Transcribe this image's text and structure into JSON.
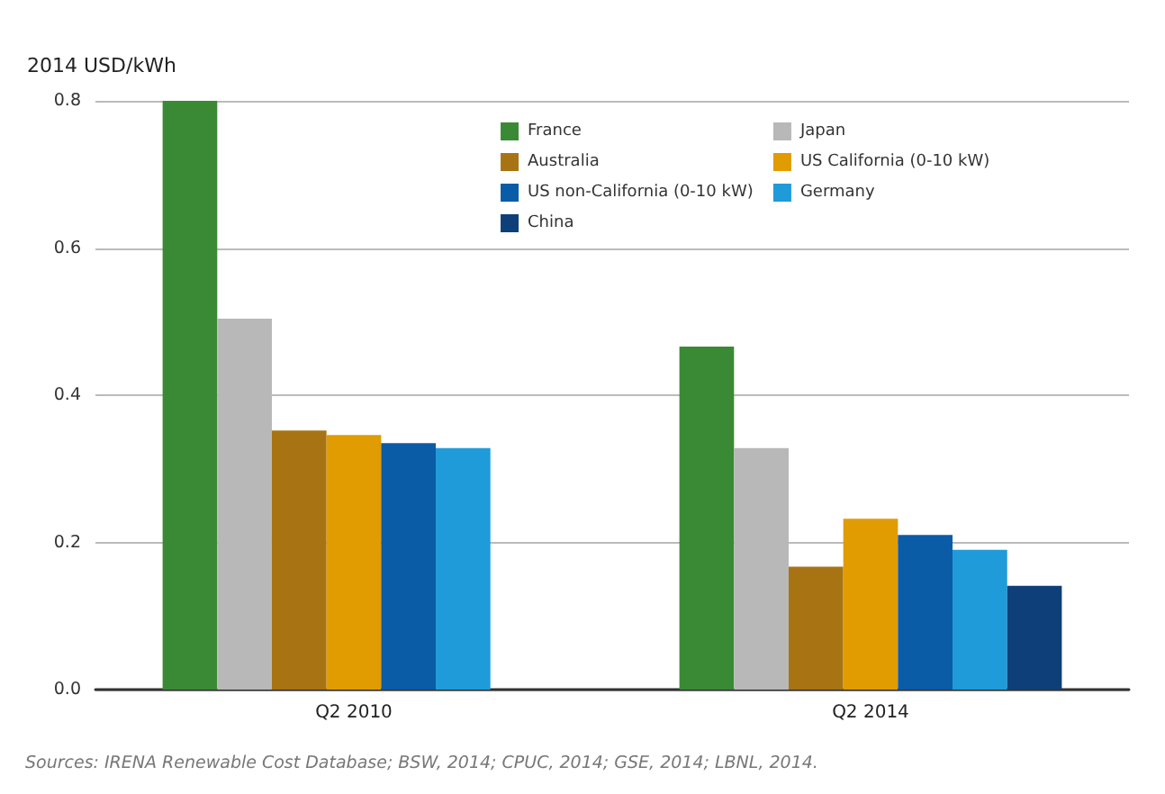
{
  "chart_data": {
    "type": "bar",
    "ylabel": "2014 USD/kWh",
    "categories": [
      "Q2 2010",
      "Q2 2014"
    ],
    "series": [
      {
        "name": "France",
        "color": "#3a8a35",
        "values": [
          0.8,
          0.466
        ]
      },
      {
        "name": "Japan",
        "color": "#b8b8b8",
        "values": [
          0.504,
          0.328
        ]
      },
      {
        "name": "Australia",
        "color": "#a87413",
        "values": [
          0.352,
          0.167
        ]
      },
      {
        "name": "US California (0-10 kW)",
        "color": "#e09c00",
        "values": [
          0.346,
          0.232
        ]
      },
      {
        "name": "US non-California (0-10 kW)",
        "color": "#0a5ca6",
        "values": [
          0.335,
          0.21
        ]
      },
      {
        "name": "Germany",
        "color": "#1f9bd9",
        "values": [
          0.328,
          0.19
        ]
      },
      {
        "name": "China",
        "color": "#0e3f78",
        "values": [
          null,
          0.141
        ]
      }
    ],
    "ylim": [
      0,
      0.8
    ],
    "yticks": [
      {
        "value": 0,
        "label": "0.0"
      },
      0.2,
      0.4,
      0.6,
      0.8
    ],
    "grid": "y",
    "legend": "top right",
    "annotations": [
      "Sources: IRENA Renewable Cost Database; BSW, 2014; CPUC, 2014; GSE, 2014; LBNL, 2014."
    ]
  }
}
